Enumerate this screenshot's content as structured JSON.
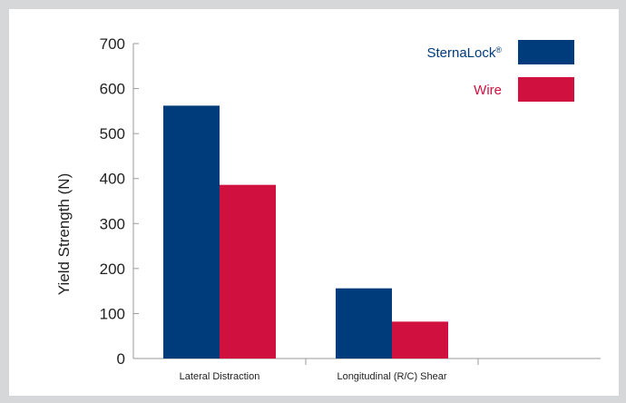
{
  "chart_data": {
    "type": "bar",
    "title": "",
    "xlabel": "",
    "ylabel": "Yield Strength (N)",
    "ylim": [
      0,
      700
    ],
    "yticks": [
      0,
      100,
      200,
      300,
      400,
      500,
      600,
      700
    ],
    "categories": [
      "Lateral Distraction",
      "Longitudinal (R/C) Shear"
    ],
    "series": [
      {
        "name": "SternaLock",
        "mark": "®",
        "color": "#003b7b",
        "values": [
          562,
          156
        ]
      },
      {
        "name": "Wire",
        "mark": "",
        "color": "#d0103f",
        "values": [
          386,
          82
        ]
      }
    ],
    "legend_position": "top-right",
    "grid": false
  }
}
